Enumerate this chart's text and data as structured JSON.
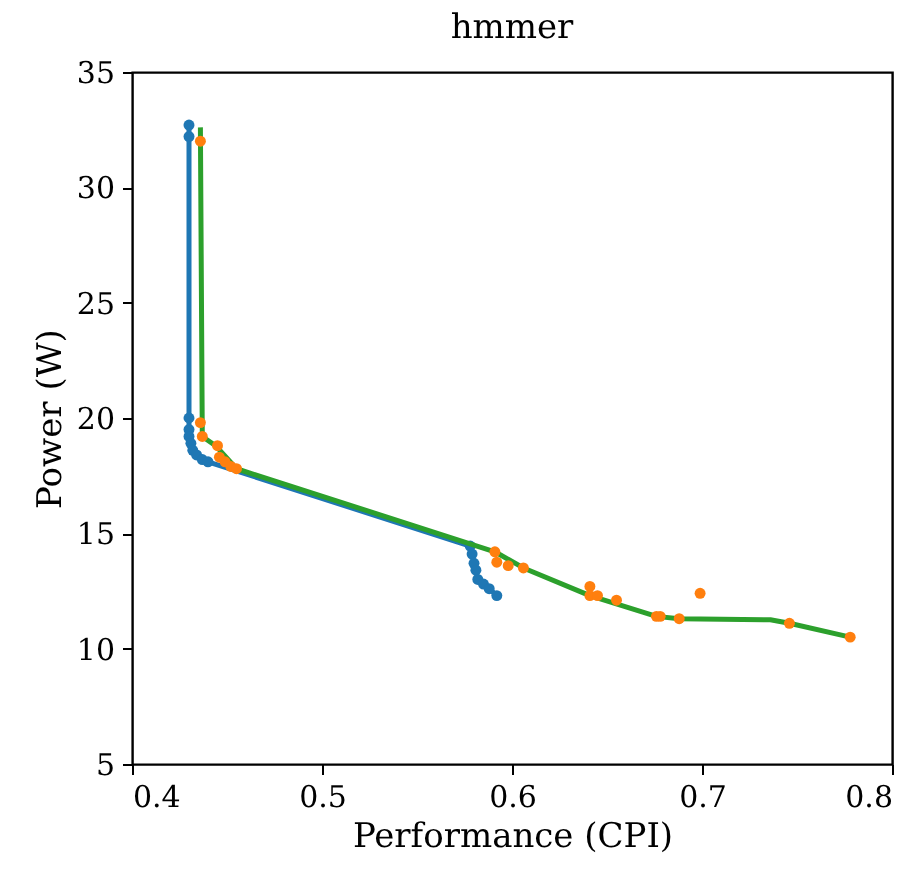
{
  "chart_data": {
    "type": "line",
    "title": "hmmer",
    "xlabel": "Performance (CPI)",
    "ylabel": "Power (W)",
    "xlim": [
      0.4,
      0.8
    ],
    "xticks": [
      0.4,
      0.5,
      0.6,
      0.7,
      0.8
    ],
    "ylim": [
      5,
      35
    ],
    "yticks": [
      5,
      10,
      15,
      20,
      25,
      30,
      35
    ],
    "grid": false,
    "series": [
      {
        "marker": "circle",
        "color": "#1f77b4",
        "x": [
          0.43,
          0.43,
          0.43,
          0.43,
          0.43,
          0.431,
          0.432,
          0.434,
          0.437,
          0.44,
          0.578,
          0.579,
          0.58,
          0.581,
          0.582,
          0.585,
          0.588,
          0.592
        ],
        "values": [
          32.7,
          32.2,
          20.0,
          19.5,
          19.2,
          18.9,
          18.6,
          18.4,
          18.2,
          18.1,
          14.45,
          14.1,
          13.7,
          13.4,
          13.0,
          12.8,
          12.6,
          12.3
        ]
      },
      {
        "marker": "none",
        "color": "#2ca02c",
        "x": [
          0.436,
          0.437,
          0.444,
          0.455,
          0.591,
          0.606,
          0.641,
          0.676,
          0.688,
          0.736,
          0.746,
          0.778
        ],
        "values": [
          32.6,
          19.2,
          18.8,
          17.8,
          14.2,
          13.5,
          12.3,
          11.4,
          11.3,
          11.25,
          11.1,
          10.5
        ]
      },
      {
        "type": "scatter",
        "color": "#ff7f0e",
        "x": [
          0.436,
          0.436,
          0.437,
          0.445,
          0.446,
          0.449,
          0.452,
          0.455,
          0.591,
          0.592,
          0.598,
          0.606,
          0.641,
          0.641,
          0.645,
          0.655,
          0.676,
          0.678,
          0.688,
          0.699,
          0.746,
          0.778
        ],
        "values": [
          32.0,
          19.8,
          19.2,
          18.8,
          18.3,
          18.1,
          17.9,
          17.8,
          14.2,
          13.75,
          13.6,
          13.5,
          12.7,
          12.3,
          12.3,
          12.1,
          11.4,
          11.4,
          11.3,
          12.4,
          11.1,
          10.5
        ]
      }
    ]
  }
}
